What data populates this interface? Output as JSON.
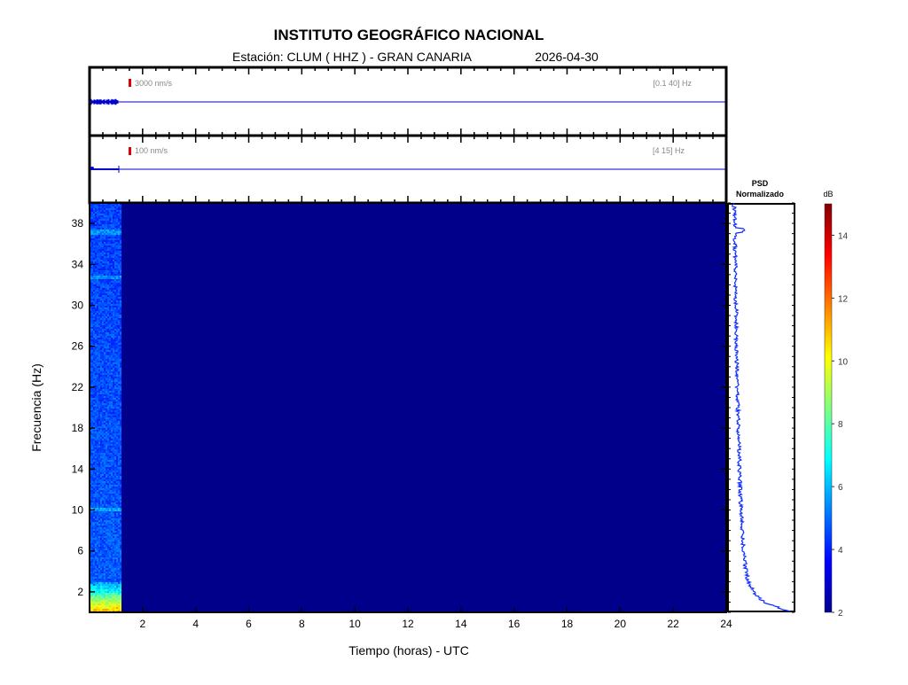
{
  "header": {
    "title": "INSTITUTO GEOGRÁFICO NACIONAL",
    "station": "Estación:  CLUM ( HHZ ) - GRAN CANARIA",
    "date": "2026-04-30"
  },
  "traces": [
    {
      "scale_label": "3000 nm/s",
      "band_label": "[0.1 40] Hz",
      "scale_color": "#e00000",
      "line_color": "#0000cc",
      "data_until_hours": 1.15
    },
    {
      "scale_label": "100 nm/s",
      "band_label": "[4 15] Hz",
      "scale_color": "#e00000",
      "line_color": "#0000cc",
      "data_until_hours": 1.15
    }
  ],
  "chart_data": {
    "type": "heatmap",
    "xlabel": "Tiempo (horas) - UTC",
    "ylabel": "Frecuencia  (Hz)",
    "xlim": [
      0,
      24
    ],
    "ylim": [
      0,
      40
    ],
    "xticks": [
      2,
      4,
      6,
      8,
      10,
      12,
      14,
      16,
      18,
      20,
      22,
      24
    ],
    "yticks": [
      2,
      6,
      10,
      14,
      18,
      22,
      26,
      30,
      34,
      38
    ],
    "data_until_hours": 1.15,
    "background_level_db": 2,
    "colorbar": {
      "label": "dB",
      "range": [
        2,
        15
      ],
      "ticks": [
        2,
        4,
        6,
        8,
        10,
        12,
        14
      ],
      "colormap": "jet"
    },
    "psd": {
      "title_line1": "PSD",
      "title_line2": "Normalizado",
      "frequencies_hz": [
        0,
        1,
        2,
        3,
        4,
        6,
        8,
        10,
        14,
        18,
        22,
        26,
        30,
        34,
        37,
        40
      ],
      "normalized_values": [
        1.0,
        0.55,
        0.38,
        0.3,
        0.26,
        0.22,
        0.2,
        0.18,
        0.16,
        0.14,
        0.12,
        0.11,
        0.1,
        0.09,
        0.08,
        0.07
      ],
      "line_color": "#0a2aff"
    }
  }
}
